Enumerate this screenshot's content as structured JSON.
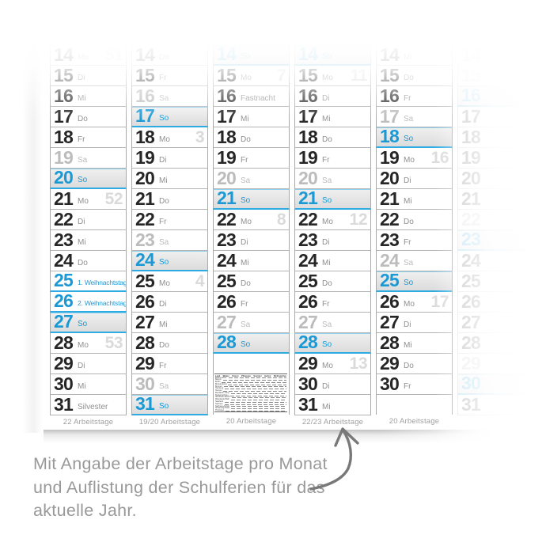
{
  "colors": {
    "accent_blue": "#1B99D5",
    "accent_blue_border": "#2FABE1",
    "sunday_bg": "#e3e3e3"
  },
  "months": [
    {
      "workdays_label": "22 Arbeitstage",
      "ghost": false,
      "days": [
        {
          "day": 14,
          "label": "Mo",
          "type": "normal",
          "week": "51"
        },
        {
          "day": 15,
          "label": "Di",
          "type": "normal"
        },
        {
          "day": 16,
          "label": "Mi",
          "type": "normal"
        },
        {
          "day": 17,
          "label": "Do",
          "type": "normal"
        },
        {
          "day": 18,
          "label": "Fr",
          "type": "normal"
        },
        {
          "day": 19,
          "label": "Sa",
          "type": "sat"
        },
        {
          "day": 20,
          "label": "So",
          "type": "sun"
        },
        {
          "day": 21,
          "label": "Mo",
          "type": "normal",
          "week": "52"
        },
        {
          "day": 22,
          "label": "Di",
          "type": "normal"
        },
        {
          "day": 23,
          "label": "Mi",
          "type": "normal"
        },
        {
          "day": 24,
          "label": "Do",
          "type": "normal"
        },
        {
          "day": 25,
          "label": "1. Weihnachtstag",
          "type": "holiday"
        },
        {
          "day": 26,
          "label": "2. Weihnachtstag",
          "type": "holiday"
        },
        {
          "day": 27,
          "label": "So",
          "type": "sun"
        },
        {
          "day": 28,
          "label": "Mo",
          "type": "normal",
          "week": "53"
        },
        {
          "day": 29,
          "label": "Di",
          "type": "normal"
        },
        {
          "day": 30,
          "label": "Mi",
          "type": "normal"
        },
        {
          "day": 31,
          "label": "Silvester",
          "type": "normal"
        }
      ]
    },
    {
      "workdays_label": "19/20 Arbeitstage",
      "ghost": false,
      "days": [
        {
          "day": 14,
          "label": "Do",
          "type": "normal"
        },
        {
          "day": 15,
          "label": "Fr",
          "type": "normal"
        },
        {
          "day": 16,
          "label": "Sa",
          "type": "sat"
        },
        {
          "day": 17,
          "label": "So",
          "type": "sun"
        },
        {
          "day": 18,
          "label": "Mo",
          "type": "normal",
          "week": "3"
        },
        {
          "day": 19,
          "label": "Di",
          "type": "normal"
        },
        {
          "day": 20,
          "label": "Mi",
          "type": "normal"
        },
        {
          "day": 21,
          "label": "Do",
          "type": "normal"
        },
        {
          "day": 22,
          "label": "Fr",
          "type": "normal"
        },
        {
          "day": 23,
          "label": "Sa",
          "type": "sat"
        },
        {
          "day": 24,
          "label": "So",
          "type": "sun"
        },
        {
          "day": 25,
          "label": "Mo",
          "type": "normal",
          "week": "4"
        },
        {
          "day": 26,
          "label": "Di",
          "type": "normal"
        },
        {
          "day": 27,
          "label": "Mi",
          "type": "normal"
        },
        {
          "day": 28,
          "label": "Do",
          "type": "normal"
        },
        {
          "day": 29,
          "label": "Fr",
          "type": "normal"
        },
        {
          "day": 30,
          "label": "Sa",
          "type": "sat"
        },
        {
          "day": 31,
          "label": "So",
          "type": "sun"
        }
      ]
    },
    {
      "workdays_label": "20 Arbeitstage",
      "ghost": false,
      "days": [
        {
          "day": 14,
          "label": "So",
          "type": "sun"
        },
        {
          "day": 15,
          "label": "Mo",
          "type": "normal",
          "week": "7"
        },
        {
          "day": 16,
          "label": "Fastnacht",
          "type": "normal"
        },
        {
          "day": 17,
          "label": "Mi",
          "type": "normal"
        },
        {
          "day": 18,
          "label": "Do",
          "type": "normal"
        },
        {
          "day": 19,
          "label": "Fr",
          "type": "normal"
        },
        {
          "day": 20,
          "label": "Sa",
          "type": "sat"
        },
        {
          "day": 21,
          "label": "So",
          "type": "sun"
        },
        {
          "day": 22,
          "label": "Mo",
          "type": "normal",
          "week": "8"
        },
        {
          "day": 23,
          "label": "Di",
          "type": "normal"
        },
        {
          "day": 24,
          "label": "Mi",
          "type": "normal"
        },
        {
          "day": 25,
          "label": "Do",
          "type": "normal"
        },
        {
          "day": 26,
          "label": "Fr",
          "type": "normal"
        },
        {
          "day": 27,
          "label": "Sa",
          "type": "sat"
        },
        {
          "day": 28,
          "label": "So",
          "type": "sun"
        },
        {
          "type": "empty",
          "rows": 3,
          "table": true
        }
      ]
    },
    {
      "workdays_label": "22/23 Arbeitstage",
      "ghost": false,
      "days": [
        {
          "day": 14,
          "label": "So",
          "type": "sun"
        },
        {
          "day": 15,
          "label": "Mo",
          "type": "normal",
          "week": "11"
        },
        {
          "day": 16,
          "label": "Di",
          "type": "normal"
        },
        {
          "day": 17,
          "label": "Mi",
          "type": "normal"
        },
        {
          "day": 18,
          "label": "Do",
          "type": "normal"
        },
        {
          "day": 19,
          "label": "Fr",
          "type": "normal"
        },
        {
          "day": 20,
          "label": "Sa",
          "type": "sat"
        },
        {
          "day": 21,
          "label": "So",
          "type": "sun"
        },
        {
          "day": 22,
          "label": "Mo",
          "type": "normal",
          "week": "12"
        },
        {
          "day": 23,
          "label": "Di",
          "type": "normal"
        },
        {
          "day": 24,
          "label": "Mi",
          "type": "normal"
        },
        {
          "day": 25,
          "label": "Do",
          "type": "normal"
        },
        {
          "day": 26,
          "label": "Fr",
          "type": "normal"
        },
        {
          "day": 27,
          "label": "Sa",
          "type": "sat"
        },
        {
          "day": 28,
          "label": "So",
          "type": "sun"
        },
        {
          "day": 29,
          "label": "Mo",
          "type": "normal",
          "week": "13"
        },
        {
          "day": 30,
          "label": "Di",
          "type": "normal"
        },
        {
          "day": 31,
          "label": "Mi",
          "type": "normal"
        }
      ]
    },
    {
      "workdays_label": "20 Arbeitstage",
      "ghost": false,
      "days": [
        {
          "day": 14,
          "label": "Mi",
          "type": "normal"
        },
        {
          "day": 15,
          "label": "Do",
          "type": "normal"
        },
        {
          "day": 16,
          "label": "Fr",
          "type": "normal"
        },
        {
          "day": 17,
          "label": "Sa",
          "type": "sat"
        },
        {
          "day": 18,
          "label": "So",
          "type": "sun"
        },
        {
          "day": 19,
          "label": "Mo",
          "type": "normal",
          "week": "16"
        },
        {
          "day": 20,
          "label": "Di",
          "type": "normal"
        },
        {
          "day": 21,
          "label": "Mi",
          "type": "normal"
        },
        {
          "day": 22,
          "label": "Do",
          "type": "normal"
        },
        {
          "day": 23,
          "label": "Fr",
          "type": "normal"
        },
        {
          "day": 24,
          "label": "Sa",
          "type": "sat"
        },
        {
          "day": 25,
          "label": "So",
          "type": "sun"
        },
        {
          "day": 26,
          "label": "Mo",
          "type": "normal",
          "week": "17"
        },
        {
          "day": 27,
          "label": "Di",
          "type": "normal"
        },
        {
          "day": 28,
          "label": "Mi",
          "type": "normal"
        },
        {
          "day": 29,
          "label": "Do",
          "type": "normal"
        },
        {
          "day": 30,
          "label": "Fr",
          "type": "normal"
        },
        {
          "type": "empty",
          "rows": 1
        }
      ]
    },
    {
      "workdays_label": "",
      "ghost": true,
      "days": [
        {
          "day": 14,
          "label": "",
          "type": "normal"
        },
        {
          "day": 15,
          "label": "",
          "type": "sat"
        },
        {
          "day": 16,
          "label": "",
          "type": "sun"
        },
        {
          "day": 17,
          "label": "",
          "type": "normal"
        },
        {
          "day": 18,
          "label": "",
          "type": "normal"
        },
        {
          "day": 19,
          "label": "",
          "type": "normal"
        },
        {
          "day": 20,
          "label": "",
          "type": "normal"
        },
        {
          "day": 21,
          "label": "",
          "type": "normal"
        },
        {
          "day": 22,
          "label": "",
          "type": "sat"
        },
        {
          "day": 23,
          "label": "",
          "type": "sun"
        },
        {
          "day": 24,
          "label": "",
          "type": "normal"
        },
        {
          "day": 25,
          "label": "",
          "type": "normal"
        },
        {
          "day": 26,
          "label": "",
          "type": "normal"
        },
        {
          "day": 27,
          "label": "",
          "type": "normal"
        },
        {
          "day": 28,
          "label": "",
          "type": "normal"
        },
        {
          "day": 29,
          "label": "",
          "type": "sat"
        },
        {
          "day": 30,
          "label": "",
          "type": "sun"
        },
        {
          "day": 31,
          "label": "",
          "type": "normal"
        }
      ]
    }
  ],
  "schulferien_table": {
    "header": [
      "Land",
      "Winter",
      "Ostern",
      "Pfingsten",
      "Sommer",
      "Herbst",
      "Weihnachten"
    ],
    "states": [
      "Baden-Württ.",
      "Bayern",
      "Berlin",
      "Brandenburg",
      "Bremen",
      "Hamburg",
      "Hessen",
      "Mecklenb.-Vorp.",
      "Niedersachsen",
      "Nordrhein-Westf.",
      "Rheinland-Pfalz",
      "Saarland",
      "Sachsen",
      "Sachsen-Anhalt",
      "Schleswig-Holst.",
      "Thüringen"
    ]
  },
  "caption": {
    "line1": "Mit Angabe der Arbeitstage pro Monat",
    "line2": "und Auflistung der Schulferien für das",
    "line3": "aktuelle Jahr."
  }
}
